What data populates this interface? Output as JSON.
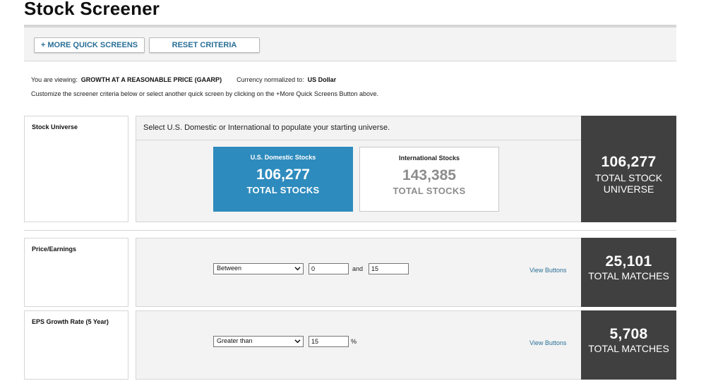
{
  "page": {
    "title": "Stock Screener"
  },
  "toolbar": {
    "more_label": "+ MORE QUICK SCREENS",
    "reset_label": "RESET CRITERIA"
  },
  "info": {
    "viewing_label": "You are viewing:",
    "viewing_value": "GROWTH AT A REASONABLE PRICE (GAARP)",
    "currency_label": "Currency normalized to:",
    "currency_value": "US Dollar",
    "instructions": "Customize the screener criteria below or select another quick screen by clicking on the +More Quick Screens Button above."
  },
  "universe": {
    "label": "Stock Universe",
    "instruction": "Select U.S. Domestic or International to populate your starting universe.",
    "domestic": {
      "title": "U.S. Domestic Stocks",
      "count": "106,277",
      "caption": "TOTAL STOCKS"
    },
    "international": {
      "title": "International Stocks",
      "count": "143,385",
      "caption": "TOTAL STOCKS"
    },
    "result": {
      "count": "106,277",
      "caption_line1": "TOTAL STOCK",
      "caption_line2": "UNIVERSE"
    }
  },
  "criteria": [
    {
      "label": "Price/Earnings",
      "operator": "Between",
      "value1": "0",
      "connector": "and",
      "value2": "15",
      "link": "View Buttons",
      "result": {
        "count": "25,101",
        "caption": "TOTAL MATCHES"
      }
    },
    {
      "label": "EPS Growth Rate (5 Year)",
      "operator": "Greater than",
      "value1": "15",
      "suffix": "%",
      "link": "View Buttons",
      "result": {
        "count": "5,708",
        "caption": "TOTAL MATCHES"
      }
    }
  ],
  "colors": {
    "accent": "#2e8bbd",
    "link": "#2a6f97",
    "result_bg": "#404040"
  },
  "icons": {
    "dropdown": "chevron-down-icon"
  }
}
